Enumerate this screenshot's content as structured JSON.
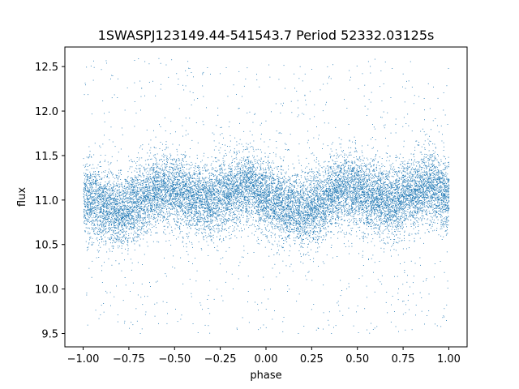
{
  "chart_data": {
    "type": "scatter",
    "title": "1SWASPJ123149.44-541543.7 Period 52332.03125s",
    "xlabel": "phase",
    "ylabel": "flux",
    "xlim": [
      -1.1,
      1.1
    ],
    "ylim": [
      9.35,
      12.72
    ],
    "xticks": [
      -1.0,
      -0.75,
      -0.5,
      -0.25,
      0.0,
      0.25,
      0.5,
      0.75,
      1.0
    ],
    "xtick_labels": [
      "−1.00",
      "−0.75",
      "−0.50",
      "−0.25",
      "0.00",
      "0.25",
      "0.50",
      "0.75",
      "1.00"
    ],
    "yticks": [
      9.5,
      10.0,
      10.5,
      11.0,
      11.5,
      12.0,
      12.5
    ],
    "ytick_labels": [
      "9.5",
      "10.0",
      "10.5",
      "11.0",
      "11.5",
      "12.0",
      "12.5"
    ],
    "grid": false,
    "legend": "none",
    "point_color": "#1f77b4",
    "phase_range": [
      -1.0,
      1.0
    ],
    "flux_range": [
      9.5,
      12.6
    ],
    "profile": {
      "phase": [
        -1.0,
        -0.9,
        -0.8,
        -0.7,
        -0.6,
        -0.5,
        -0.4,
        -0.3,
        -0.2,
        -0.1,
        0.0,
        0.1,
        0.2,
        0.3,
        0.4,
        0.5,
        0.6,
        0.7,
        0.8,
        0.9,
        1.0
      ],
      "median_flux": [
        11.03,
        10.95,
        10.87,
        10.98,
        11.13,
        11.12,
        11.0,
        10.98,
        11.1,
        11.17,
        11.03,
        10.95,
        10.87,
        10.98,
        11.13,
        11.12,
        11.0,
        10.98,
        11.1,
        11.17,
        11.03
      ]
    }
  }
}
